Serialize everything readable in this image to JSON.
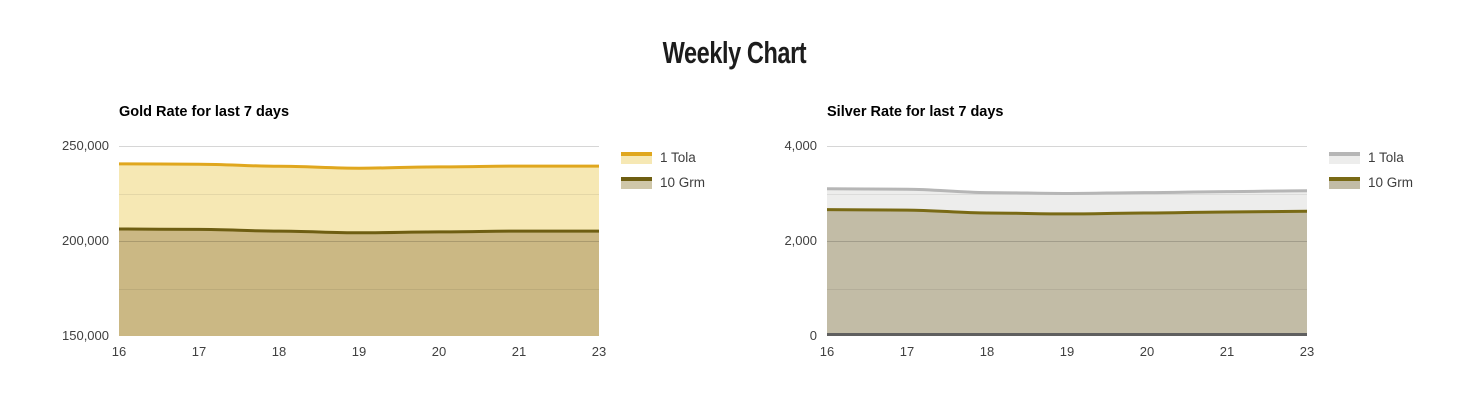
{
  "title": "Weekly Chart",
  "chart_data": [
    {
      "type": "area",
      "title": "Gold Rate for last 7 days",
      "categories": [
        "16",
        "17",
        "18",
        "19",
        "20",
        "21",
        "23"
      ],
      "series": [
        {
          "name": "1 Tola",
          "values": [
            240600,
            240400,
            239300,
            238300,
            239000,
            239400,
            239400
          ],
          "line_color": "#E0A71E",
          "fill_color": "#F6E8B4",
          "legend_fill": "#F6E8B4"
        },
        {
          "name": "10 Grm",
          "values": [
            206300,
            206100,
            205200,
            204300,
            204800,
            205200,
            205200
          ],
          "line_color": "#6E5E12",
          "fill_color": "#CBB884",
          "legend_fill": "#CFC7A9"
        }
      ],
      "xlabel": "",
      "ylabel": "",
      "ylim": [
        150000,
        250000
      ],
      "yticks": [
        {
          "value": 150000,
          "label": "150,000"
        },
        {
          "value": 200000,
          "label": "200,000"
        },
        {
          "value": 250000,
          "label": "250,000"
        }
      ],
      "minor_step": 25000,
      "grid": true,
      "legend_position": "right",
      "zero_baseline": false
    },
    {
      "type": "area",
      "title": "Silver Rate for last 7 days",
      "categories": [
        "16",
        "17",
        "18",
        "19",
        "20",
        "21",
        "23"
      ],
      "series": [
        {
          "name": "1 Tola",
          "values": [
            3100,
            3090,
            3020,
            3000,
            3020,
            3040,
            3060
          ],
          "line_color": "#B6B6B6",
          "fill_color": "#EDEDEC",
          "legend_fill": "#EDEDEC"
        },
        {
          "name": "10 Grm",
          "values": [
            2660,
            2650,
            2590,
            2570,
            2590,
            2610,
            2625
          ],
          "line_color": "#796A15",
          "fill_color": "#C2BCA6",
          "legend_fill": "#C2BCA6"
        }
      ],
      "xlabel": "",
      "ylabel": "",
      "ylim": [
        0,
        4000
      ],
      "yticks": [
        {
          "value": 0,
          "label": "0"
        },
        {
          "value": 2000,
          "label": "2,000"
        },
        {
          "value": 4000,
          "label": "4,000"
        }
      ],
      "minor_step": 1000,
      "grid": true,
      "legend_position": "right",
      "zero_baseline": true,
      "baseline_color": "#5F5F5F"
    }
  ]
}
